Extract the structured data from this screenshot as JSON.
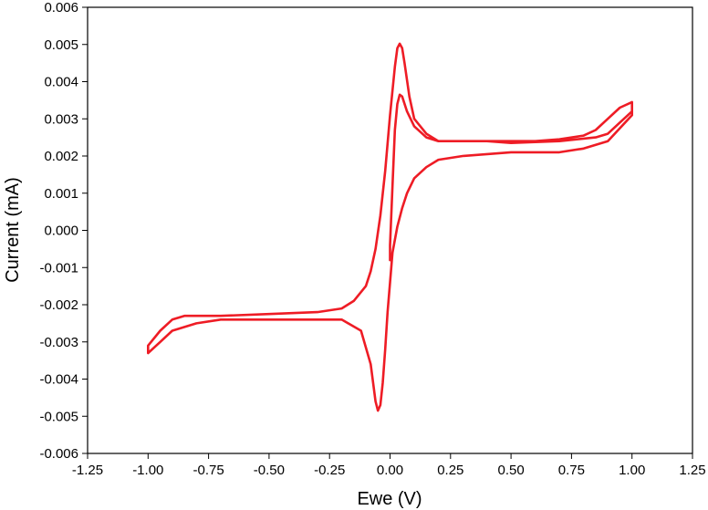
{
  "chart_data": {
    "type": "line",
    "title": "",
    "xlabel": "Ewe (V)",
    "ylabel": "Current (mA)",
    "xlim": [
      -1.25,
      1.25
    ],
    "ylim": [
      -0.006,
      0.006
    ],
    "grid": false,
    "legend": "none",
    "x_ticks": [
      "-1.25",
      "-1.00",
      "-0.75",
      "-0.50",
      "-0.25",
      "0.00",
      "0.25",
      "0.50",
      "0.75",
      "1.00",
      "1.25"
    ],
    "y_ticks": [
      "-0.006",
      "-0.005",
      "-0.004",
      "-0.003",
      "-0.002",
      "-0.001",
      "0.000",
      "0.001",
      "0.002",
      "0.003",
      "0.004",
      "0.005",
      "0.006"
    ],
    "line_color": "#ee1c25",
    "series": [
      {
        "x": [
          0.0,
          0.0,
          0.01,
          0.02,
          0.03,
          0.04,
          0.05,
          0.07,
          0.1,
          0.15,
          0.2,
          0.3,
          0.4,
          0.5,
          0.6,
          0.7,
          0.8,
          0.85,
          0.9,
          0.95,
          1.0,
          1.0,
          0.9,
          0.8,
          0.7,
          0.5,
          0.3,
          0.2,
          0.15,
          0.1,
          0.07,
          0.05,
          0.03,
          0.01,
          0.0,
          -0.01,
          -0.02,
          -0.03,
          -0.04,
          -0.05,
          -0.06,
          -0.08,
          -0.12,
          -0.2,
          -0.3,
          -0.5,
          -0.7,
          -0.8,
          -0.9,
          -0.95,
          -1.0,
          -1.0,
          -0.95,
          -0.9,
          -0.85,
          -0.8,
          -0.7,
          -0.5,
          -0.3,
          -0.2,
          -0.15,
          -0.1,
          -0.08,
          -0.06,
          -0.04,
          -0.02,
          0.0,
          0.02,
          0.03,
          0.04,
          0.05,
          0.06,
          0.08,
          0.1,
          0.15,
          0.2,
          0.3,
          0.4,
          0.5,
          0.7,
          0.85,
          0.9,
          0.95,
          1.0
        ],
        "y": [
          -0.0008,
          -0.0004,
          0.0012,
          0.0027,
          0.0034,
          0.00365,
          0.0036,
          0.0032,
          0.0028,
          0.0025,
          0.0024,
          0.0024,
          0.0024,
          0.0024,
          0.0024,
          0.00245,
          0.00255,
          0.0027,
          0.003,
          0.0033,
          0.00345,
          0.0031,
          0.0024,
          0.0022,
          0.0021,
          0.0021,
          0.002,
          0.0019,
          0.0017,
          0.0014,
          0.001,
          0.0006,
          0.0001,
          -0.0006,
          -0.0014,
          -0.0022,
          -0.0032,
          -0.0041,
          -0.0047,
          -0.00485,
          -0.0046,
          -0.0036,
          -0.0027,
          -0.0024,
          -0.0024,
          -0.0024,
          -0.0024,
          -0.0025,
          -0.0027,
          -0.003,
          -0.0033,
          -0.0031,
          -0.0027,
          -0.0024,
          -0.0023,
          -0.0023,
          -0.0023,
          -0.00225,
          -0.0022,
          -0.0021,
          -0.0019,
          -0.0015,
          -0.0011,
          -0.0005,
          0.0004,
          0.0016,
          0.0031,
          0.0044,
          0.0049,
          0.00502,
          0.0049,
          0.0045,
          0.0036,
          0.003,
          0.0026,
          0.0024,
          0.0024,
          0.0024,
          0.00235,
          0.0024,
          0.0025,
          0.0026,
          0.0029,
          0.0032
        ]
      }
    ]
  }
}
